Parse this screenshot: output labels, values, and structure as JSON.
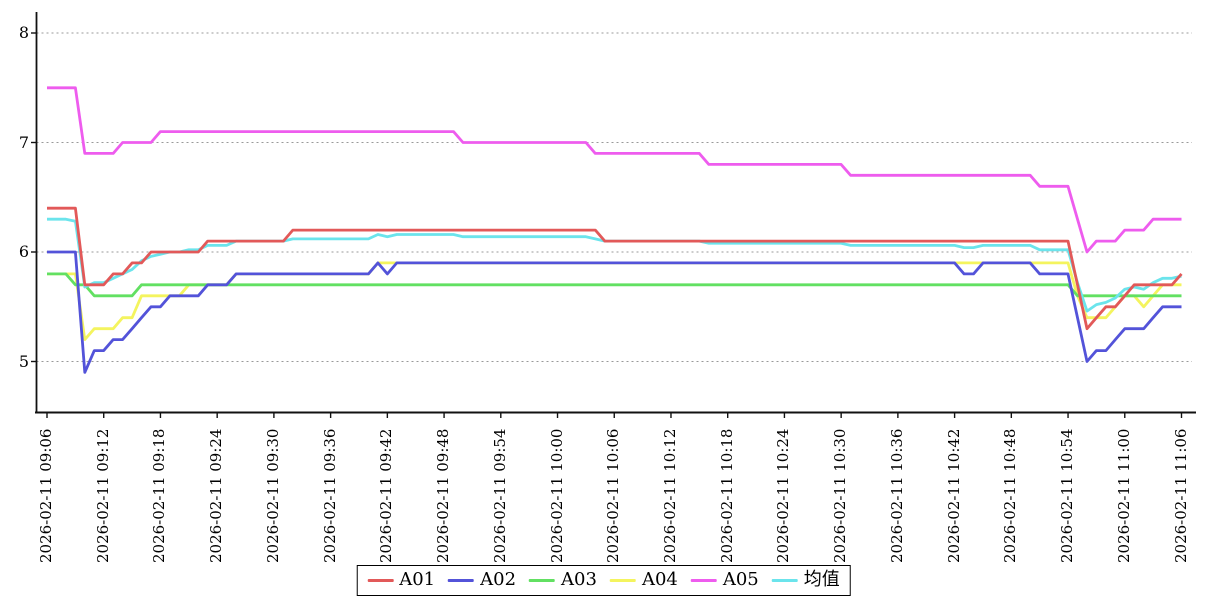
{
  "chart_data": {
    "type": "line",
    "title": "",
    "xlabel": "",
    "ylabel": "",
    "x_start": "2026-02-11 09:06",
    "x_end": "2026-02-11 11:06",
    "x_interval_minutes": 1,
    "x_points": 121,
    "x_tick_every_minutes": 6,
    "x_tick_labels": [
      "2026-02-11 09:06",
      "2026-02-11 09:12",
      "2026-02-11 09:18",
      "2026-02-11 09:24",
      "2026-02-11 09:30",
      "2026-02-11 09:36",
      "2026-02-11 09:42",
      "2026-02-11 09:48",
      "2026-02-11 09:54",
      "2026-02-11 10:00",
      "2026-02-11 10:06",
      "2026-02-11 10:12",
      "2026-02-11 10:18",
      "2026-02-11 10:24",
      "2026-02-11 10:30",
      "2026-02-11 10:36",
      "2026-02-11 10:42",
      "2026-02-11 10:48",
      "2026-02-11 10:54",
      "2026-02-11 11:00",
      "2026-02-11 11:06"
    ],
    "y_tick_labels": [
      "8",
      "7",
      "6",
      "5"
    ],
    "yticks": [
      8,
      7,
      6,
      5
    ],
    "ylim": [
      4.55,
      8.2
    ],
    "grid": "horizontal-dashed",
    "grid_color": "#999999",
    "axis_color": "#111111",
    "background": "#ffffff",
    "legend_position": "bottom-center",
    "series": [
      {
        "name": "A01",
        "color": "#e25959",
        "values": [
          6.4,
          6.4,
          6.4,
          6.4,
          5.7,
          5.7,
          5.7,
          5.8,
          5.8,
          5.9,
          5.9,
          6.0,
          6.0,
          6.0,
          6.0,
          6.0,
          6.0,
          6.1,
          6.1,
          6.1,
          6.1,
          6.1,
          6.1,
          6.1,
          6.1,
          6.1,
          6.2,
          6.2,
          6.2,
          6.2,
          6.2,
          6.2,
          6.2,
          6.2,
          6.2,
          6.2,
          6.2,
          6.2,
          6.2,
          6.2,
          6.2,
          6.2,
          6.2,
          6.2,
          6.2,
          6.2,
          6.2,
          6.2,
          6.2,
          6.2,
          6.2,
          6.2,
          6.2,
          6.2,
          6.2,
          6.2,
          6.2,
          6.2,
          6.2,
          6.1,
          6.1,
          6.1,
          6.1,
          6.1,
          6.1,
          6.1,
          6.1,
          6.1,
          6.1,
          6.1,
          6.1,
          6.1,
          6.1,
          6.1,
          6.1,
          6.1,
          6.1,
          6.1,
          6.1,
          6.1,
          6.1,
          6.1,
          6.1,
          6.1,
          6.1,
          6.1,
          6.1,
          6.1,
          6.1,
          6.1,
          6.1,
          6.1,
          6.1,
          6.1,
          6.1,
          6.1,
          6.1,
          6.1,
          6.1,
          6.1,
          6.1,
          6.1,
          6.1,
          6.1,
          6.1,
          6.1,
          6.1,
          6.1,
          6.1,
          5.7,
          5.3,
          5.4,
          5.5,
          5.5,
          5.6,
          5.7,
          5.7,
          5.7,
          5.7,
          5.7,
          5.8
        ]
      },
      {
        "name": "A02",
        "color": "#5353d9",
        "values": [
          6.0,
          6.0,
          6.0,
          6.0,
          4.9,
          5.1,
          5.1,
          5.2,
          5.2,
          5.3,
          5.4,
          5.5,
          5.5,
          5.6,
          5.6,
          5.6,
          5.6,
          5.7,
          5.7,
          5.7,
          5.8,
          5.8,
          5.8,
          5.8,
          5.8,
          5.8,
          5.8,
          5.8,
          5.8,
          5.8,
          5.8,
          5.8,
          5.8,
          5.8,
          5.8,
          5.9,
          5.8,
          5.9,
          5.9,
          5.9,
          5.9,
          5.9,
          5.9,
          5.9,
          5.9,
          5.9,
          5.9,
          5.9,
          5.9,
          5.9,
          5.9,
          5.9,
          5.9,
          5.9,
          5.9,
          5.9,
          5.9,
          5.9,
          5.9,
          5.9,
          5.9,
          5.9,
          5.9,
          5.9,
          5.9,
          5.9,
          5.9,
          5.9,
          5.9,
          5.9,
          5.9,
          5.9,
          5.9,
          5.9,
          5.9,
          5.9,
          5.9,
          5.9,
          5.9,
          5.9,
          5.9,
          5.9,
          5.9,
          5.9,
          5.9,
          5.9,
          5.9,
          5.9,
          5.9,
          5.9,
          5.9,
          5.9,
          5.9,
          5.9,
          5.9,
          5.9,
          5.9,
          5.8,
          5.8,
          5.9,
          5.9,
          5.9,
          5.9,
          5.9,
          5.9,
          5.8,
          5.8,
          5.8,
          5.8,
          5.4,
          5.0,
          5.1,
          5.1,
          5.2,
          5.3,
          5.3,
          5.3,
          5.4,
          5.5,
          5.5,
          5.5
        ]
      },
      {
        "name": "A03",
        "color": "#62e062",
        "values": [
          5.8,
          5.8,
          5.8,
          5.7,
          5.7,
          5.6,
          5.6,
          5.6,
          5.6,
          5.6,
          5.7,
          5.7,
          5.7,
          5.7,
          5.7,
          5.7,
          5.7,
          5.7,
          5.7,
          5.7,
          5.7,
          5.7,
          5.7,
          5.7,
          5.7,
          5.7,
          5.7,
          5.7,
          5.7,
          5.7,
          5.7,
          5.7,
          5.7,
          5.7,
          5.7,
          5.7,
          5.7,
          5.7,
          5.7,
          5.7,
          5.7,
          5.7,
          5.7,
          5.7,
          5.7,
          5.7,
          5.7,
          5.7,
          5.7,
          5.7,
          5.7,
          5.7,
          5.7,
          5.7,
          5.7,
          5.7,
          5.7,
          5.7,
          5.7,
          5.7,
          5.7,
          5.7,
          5.7,
          5.7,
          5.7,
          5.7,
          5.7,
          5.7,
          5.7,
          5.7,
          5.7,
          5.7,
          5.7,
          5.7,
          5.7,
          5.7,
          5.7,
          5.7,
          5.7,
          5.7,
          5.7,
          5.7,
          5.7,
          5.7,
          5.7,
          5.7,
          5.7,
          5.7,
          5.7,
          5.7,
          5.7,
          5.7,
          5.7,
          5.7,
          5.7,
          5.7,
          5.7,
          5.7,
          5.7,
          5.7,
          5.7,
          5.7,
          5.7,
          5.7,
          5.7,
          5.7,
          5.7,
          5.7,
          5.7,
          5.6,
          5.6,
          5.6,
          5.6,
          5.6,
          5.6,
          5.6,
          5.6,
          5.6,
          5.6,
          5.6,
          5.6
        ]
      },
      {
        "name": "A04",
        "color": "#f4f45e",
        "values": [
          5.8,
          5.8,
          5.8,
          5.8,
          5.2,
          5.3,
          5.3,
          5.3,
          5.4,
          5.4,
          5.6,
          5.6,
          5.6,
          5.6,
          5.6,
          5.7,
          5.7,
          5.7,
          5.7,
          5.7,
          5.8,
          5.8,
          5.8,
          5.8,
          5.8,
          5.8,
          5.8,
          5.8,
          5.8,
          5.8,
          5.8,
          5.8,
          5.8,
          5.8,
          5.8,
          5.9,
          5.9,
          5.9,
          5.9,
          5.9,
          5.9,
          5.9,
          5.9,
          5.9,
          5.9,
          5.9,
          5.9,
          5.9,
          5.9,
          5.9,
          5.9,
          5.9,
          5.9,
          5.9,
          5.9,
          5.9,
          5.9,
          5.9,
          5.9,
          5.9,
          5.9,
          5.9,
          5.9,
          5.9,
          5.9,
          5.9,
          5.9,
          5.9,
          5.9,
          5.9,
          5.9,
          5.9,
          5.9,
          5.9,
          5.9,
          5.9,
          5.9,
          5.9,
          5.9,
          5.9,
          5.9,
          5.9,
          5.9,
          5.9,
          5.9,
          5.9,
          5.9,
          5.9,
          5.9,
          5.9,
          5.9,
          5.9,
          5.9,
          5.9,
          5.9,
          5.9,
          5.9,
          5.9,
          5.9,
          5.9,
          5.9,
          5.9,
          5.9,
          5.9,
          5.9,
          5.9,
          5.9,
          5.9,
          5.9,
          5.6,
          5.4,
          5.4,
          5.4,
          5.5,
          5.6,
          5.6,
          5.5,
          5.6,
          5.7,
          5.7,
          5.7
        ]
      },
      {
        "name": "A05",
        "color": "#ee5cee",
        "values": [
          7.5,
          7.5,
          7.5,
          7.5,
          6.9,
          6.9,
          6.9,
          6.9,
          7.0,
          7.0,
          7.0,
          7.0,
          7.1,
          7.1,
          7.1,
          7.1,
          7.1,
          7.1,
          7.1,
          7.1,
          7.1,
          7.1,
          7.1,
          7.1,
          7.1,
          7.1,
          7.1,
          7.1,
          7.1,
          7.1,
          7.1,
          7.1,
          7.1,
          7.1,
          7.1,
          7.1,
          7.1,
          7.1,
          7.1,
          7.1,
          7.1,
          7.1,
          7.1,
          7.1,
          7.0,
          7.0,
          7.0,
          7.0,
          7.0,
          7.0,
          7.0,
          7.0,
          7.0,
          7.0,
          7.0,
          7.0,
          7.0,
          7.0,
          6.9,
          6.9,
          6.9,
          6.9,
          6.9,
          6.9,
          6.9,
          6.9,
          6.9,
          6.9,
          6.9,
          6.9,
          6.8,
          6.8,
          6.8,
          6.8,
          6.8,
          6.8,
          6.8,
          6.8,
          6.8,
          6.8,
          6.8,
          6.8,
          6.8,
          6.8,
          6.8,
          6.7,
          6.7,
          6.7,
          6.7,
          6.7,
          6.7,
          6.7,
          6.7,
          6.7,
          6.7,
          6.7,
          6.7,
          6.7,
          6.7,
          6.7,
          6.7,
          6.7,
          6.7,
          6.7,
          6.7,
          6.6,
          6.6,
          6.6,
          6.6,
          6.3,
          6.0,
          6.1,
          6.1,
          6.1,
          6.2,
          6.2,
          6.2,
          6.3,
          6.3,
          6.3,
          6.3
        ]
      },
      {
        "name": "均值",
        "color": "#6be4ec",
        "derived": "mean"
      }
    ]
  },
  "legend": {
    "items": [
      {
        "label": "A01",
        "color": "#e25959"
      },
      {
        "label": "A02",
        "color": "#5353d9"
      },
      {
        "label": "A03",
        "color": "#62e062"
      },
      {
        "label": "A04",
        "color": "#f4f45e"
      },
      {
        "label": "A05",
        "color": "#ee5cee"
      },
      {
        "label": "均值",
        "color": "#6be4ec"
      }
    ]
  }
}
